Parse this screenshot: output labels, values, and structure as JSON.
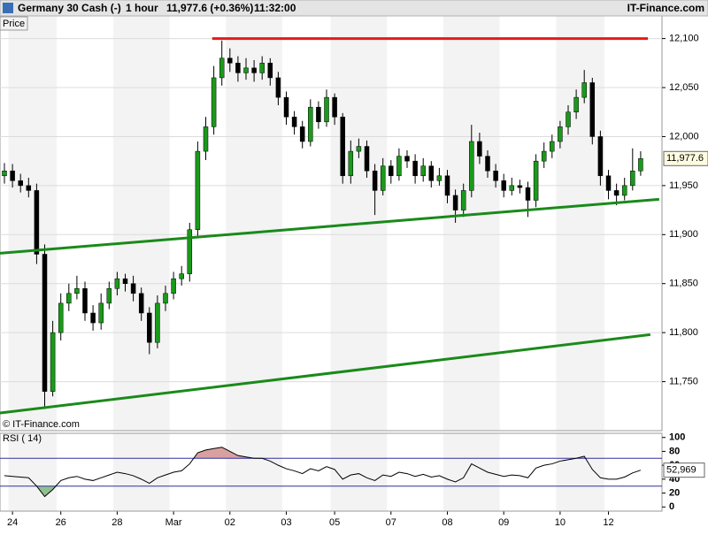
{
  "chart_data": [
    {
      "type": "candlestick",
      "title": "Germany 30 Cash (-)",
      "interval": "1 hour",
      "last": "11,977.6 (+0.36%)",
      "time": "11:32:00",
      "source": "IT-Finance.com",
      "panel_label": "Price",
      "copyright": "© IT-Finance.com",
      "categories": [
        null,
        "24",
        null,
        null,
        null,
        null,
        null,
        "26",
        null,
        null,
        null,
        null,
        null,
        null,
        "28",
        null,
        null,
        null,
        null,
        null,
        null,
        "Mar",
        null,
        null,
        null,
        null,
        null,
        null,
        "02",
        null,
        null,
        null,
        null,
        null,
        null,
        "03",
        null,
        null,
        null,
        null,
        null,
        "05",
        null,
        null,
        null,
        null,
        null,
        null,
        "07",
        null,
        null,
        null,
        null,
        null,
        null,
        "08",
        null,
        null,
        null,
        null,
        null,
        null,
        "09",
        null,
        null,
        null,
        null,
        null,
        null,
        "10",
        null,
        null,
        null,
        null,
        null,
        "12",
        null,
        null,
        null,
        null
      ],
      "open": [
        11960,
        11965,
        11955,
        11950,
        11945,
        11880,
        11740,
        11800,
        11830,
        11840,
        11845,
        11820,
        11810,
        11830,
        11845,
        11855,
        11850,
        11840,
        11820,
        11790,
        11830,
        11840,
        11855,
        11860,
        11905,
        11985,
        12010,
        12060,
        12080,
        12075,
        12065,
        12070,
        12065,
        12075,
        12060,
        12040,
        12020,
        12010,
        11995,
        12030,
        12015,
        12040,
        12020,
        11960,
        11985,
        11990,
        11965,
        11945,
        11970,
        11960,
        11980,
        11975,
        11960,
        11970,
        11955,
        11960,
        11940,
        11925,
        11945,
        11995,
        11980,
        11965,
        11955,
        11945,
        11950,
        11948,
        11935,
        11975,
        11985,
        11995,
        12010,
        12025,
        12040,
        12055,
        12000,
        11960,
        11945,
        11940,
        11950,
        11965
      ],
      "high": [
        11973,
        11972,
        11962,
        11958,
        11952,
        11890,
        11812,
        11840,
        11850,
        11858,
        11852,
        11828,
        11840,
        11852,
        11862,
        11860,
        11858,
        11846,
        11826,
        11838,
        11848,
        11862,
        11868,
        11912,
        11995,
        12020,
        12072,
        12098,
        12090,
        12082,
        12080,
        12078,
        12082,
        12080,
        12066,
        12046,
        12026,
        12016,
        12038,
        12036,
        12048,
        12044,
        12024,
        11996,
        11998,
        11996,
        11972,
        11978,
        11976,
        11988,
        11986,
        11982,
        11978,
        11975,
        11968,
        11966,
        11946,
        11952,
        12012,
        12004,
        11986,
        11972,
        11962,
        11958,
        11956,
        11954,
        11982,
        11994,
        12002,
        12016,
        12032,
        12048,
        12068,
        12060,
        12006,
        11966,
        11952,
        11958,
        11988,
        11985
      ],
      "low": [
        11952,
        11948,
        11943,
        11938,
        11870,
        11722,
        11735,
        11792,
        11822,
        11834,
        11812,
        11802,
        11803,
        11824,
        11838,
        11842,
        11832,
        11812,
        11778,
        11784,
        11822,
        11834,
        11848,
        11852,
        11898,
        11976,
        12002,
        12052,
        12066,
        12056,
        12058,
        12056,
        12058,
        12052,
        12032,
        12012,
        12002,
        11988,
        11990,
        12008,
        12010,
        12012,
        11952,
        11952,
        11978,
        11958,
        11920,
        11940,
        11952,
        11955,
        11968,
        11952,
        11954,
        11948,
        11950,
        11932,
        11912,
        11918,
        11938,
        11972,
        11958,
        11948,
        11938,
        11940,
        11942,
        11918,
        11928,
        11968,
        11978,
        11988,
        12002,
        12018,
        12034,
        11992,
        11950,
        11936,
        11930,
        11935,
        11945,
        11960
      ],
      "close": [
        11965,
        11955,
        11950,
        11945,
        11880,
        11740,
        11800,
        11830,
        11840,
        11845,
        11820,
        11810,
        11830,
        11845,
        11855,
        11850,
        11840,
        11820,
        11790,
        11830,
        11840,
        11855,
        11860,
        11905,
        11985,
        12010,
        12060,
        12080,
        12075,
        12065,
        12070,
        12065,
        12075,
        12060,
        12040,
        12020,
        12010,
        11995,
        12030,
        12015,
        12040,
        12020,
        11960,
        11985,
        11990,
        11965,
        11945,
        11970,
        11960,
        11980,
        11975,
        11960,
        11970,
        11955,
        11960,
        11940,
        11925,
        11945,
        11995,
        11980,
        11965,
        11955,
        11945,
        11950,
        11948,
        11935,
        11975,
        11985,
        11995,
        12010,
        12025,
        12040,
        12055,
        12000,
        11960,
        11945,
        11940,
        11950,
        11965,
        11977.6
      ],
      "last_label": "11,977.6",
      "up_color": "#1a9a1a",
      "down_color": "#000000",
      "trendlines": [
        {
          "color": "#e31a1a",
          "points": [
            [
              25.8,
              12100
            ],
            [
              79.9,
              12100
            ]
          ]
        },
        {
          "color": "#1a8a1a",
          "points": [
            [
              -0.55,
              11881
            ],
            [
              81.3,
              11936
            ]
          ]
        },
        {
          "color": "#1a8a1a",
          "points": [
            [
              -0.55,
              11718
            ],
            [
              80.2,
              11798
            ]
          ]
        }
      ],
      "ylim": [
        11700,
        12124
      ],
      "yticks": [
        {
          "value": 11750,
          "label": "11,750"
        },
        {
          "value": 11800,
          "label": "11,800"
        },
        {
          "value": 11850,
          "label": "11,850"
        },
        {
          "value": 11900,
          "label": "11,900"
        },
        {
          "value": 11950,
          "label": "11,950"
        },
        {
          "value": 12000,
          "label": "12,000"
        },
        {
          "value": 12050,
          "label": "12,050"
        },
        {
          "value": 12100,
          "label": "12,100"
        }
      ],
      "grid": true
    },
    {
      "type": "line",
      "title": "RSI ( 14)",
      "values": [
        45,
        44,
        43,
        42,
        30,
        15,
        25,
        38,
        42,
        44,
        40,
        38,
        42,
        46,
        50,
        48,
        45,
        40,
        34,
        42,
        46,
        50,
        52,
        62,
        78,
        82,
        84,
        86,
        80,
        74,
        72,
        70,
        70,
        66,
        60,
        55,
        52,
        48,
        55,
        52,
        58,
        54,
        40,
        46,
        48,
        42,
        38,
        46,
        44,
        50,
        48,
        44,
        47,
        43,
        45,
        40,
        36,
        42,
        62,
        56,
        50,
        47,
        44,
        46,
        45,
        42,
        56,
        60,
        62,
        66,
        68,
        70,
        73,
        54,
        42,
        40,
        40,
        43,
        49,
        52.969
      ],
      "last_label": "52,969",
      "color": "#000000",
      "levels": [
        70,
        30
      ],
      "level_color": "#3030a0",
      "overbought_color": "#d9a0a0",
      "oversold_color": "#8fbf8f",
      "ylim": [
        -6,
        106
      ],
      "yticks": [
        0,
        20,
        40,
        60,
        80,
        100
      ]
    }
  ]
}
